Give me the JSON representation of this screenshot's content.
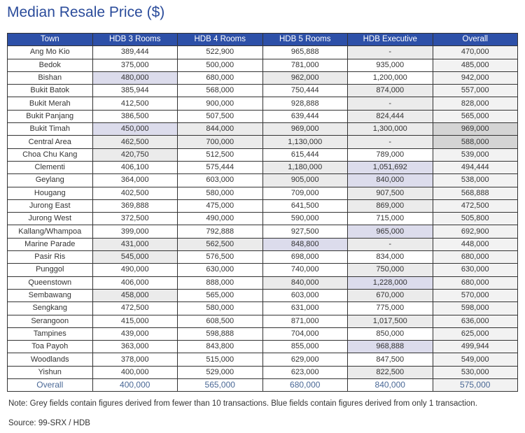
{
  "title": "Median Resale Price ($)",
  "colors": {
    "header": "#2d50a8",
    "grey_field": "#ebebeb",
    "blue_field": "#dcdcec",
    "title": "#2b4c9b"
  },
  "columns": [
    "Town",
    "HDB 3 Rooms",
    "HDB 4 Rooms",
    "HDB 5 Rooms",
    "HDB Executive",
    "Overall"
  ],
  "rows": [
    {
      "town": "Ang Mo Kio",
      "values": [
        "389,444",
        "522,900",
        "965,888",
        "-",
        "470,000"
      ],
      "shade": [
        "",
        "",
        "",
        "g",
        "ov"
      ]
    },
    {
      "town": "Bedok",
      "values": [
        "375,000",
        "500,000",
        "781,000",
        "935,000",
        "485,000"
      ],
      "shade": [
        "",
        "",
        "",
        "",
        "ov"
      ]
    },
    {
      "town": "Bishan",
      "values": [
        "480,000",
        "680,000",
        "962,000",
        "1,200,000",
        "942,000"
      ],
      "shade": [
        "b",
        "",
        "g",
        "",
        "ov"
      ]
    },
    {
      "town": "Bukit Batok",
      "values": [
        "385,944",
        "568,000",
        "750,444",
        "874,000",
        "557,000"
      ],
      "shade": [
        "",
        "",
        "",
        "g",
        "ov"
      ]
    },
    {
      "town": "Bukit Merah",
      "values": [
        "412,500",
        "900,000",
        "928,888",
        "-",
        "828,000"
      ],
      "shade": [
        "",
        "",
        "",
        "g",
        "ov"
      ]
    },
    {
      "town": "Bukit Panjang",
      "values": [
        "386,500",
        "507,500",
        "639,444",
        "824,444",
        "565,000"
      ],
      "shade": [
        "",
        "",
        "",
        "g",
        "ov"
      ]
    },
    {
      "town": "Bukit Timah",
      "values": [
        "450,000",
        "844,000",
        "969,000",
        "1,300,000",
        "969,000"
      ],
      "shade": [
        "b",
        "g",
        "g",
        "g",
        "d"
      ]
    },
    {
      "town": "Central Area",
      "values": [
        "462,500",
        "700,000",
        "1,130,000",
        "-",
        "588,000"
      ],
      "shade": [
        "g",
        "g",
        "g",
        "g",
        "d"
      ]
    },
    {
      "town": "Choa Chu Kang",
      "values": [
        "420,750",
        "512,500",
        "615,444",
        "789,000",
        "539,000"
      ],
      "shade": [
        "g",
        "",
        "",
        "",
        "ov"
      ]
    },
    {
      "town": "Clementi",
      "values": [
        "406,100",
        "575,444",
        "1,180,000",
        "1,051,692",
        "494,444"
      ],
      "shade": [
        "",
        "",
        "g",
        "b",
        "ov"
      ]
    },
    {
      "town": "Geylang",
      "values": [
        "364,000",
        "603,000",
        "905,000",
        "840,000",
        "538,000"
      ],
      "shade": [
        "",
        "",
        "g",
        "b",
        "ov"
      ]
    },
    {
      "town": "Hougang",
      "values": [
        "402,500",
        "580,000",
        "709,000",
        "907,500",
        "568,888"
      ],
      "shade": [
        "",
        "",
        "",
        "g",
        "ov"
      ]
    },
    {
      "town": "Jurong East",
      "values": [
        "369,888",
        "475,000",
        "641,500",
        "869,000",
        "472,500"
      ],
      "shade": [
        "",
        "",
        "",
        "g",
        "ov"
      ]
    },
    {
      "town": "Jurong West",
      "values": [
        "372,500",
        "490,000",
        "590,000",
        "715,000",
        "505,800"
      ],
      "shade": [
        "",
        "",
        "",
        "",
        "ov"
      ]
    },
    {
      "town": "Kallang/Whampoa",
      "values": [
        "399,000",
        "792,888",
        "927,500",
        "965,000",
        "692,900"
      ],
      "shade": [
        "",
        "",
        "",
        "b",
        "ov"
      ]
    },
    {
      "town": "Marine Parade",
      "values": [
        "431,000",
        "562,500",
        "848,800",
        "-",
        "448,000"
      ],
      "shade": [
        "g",
        "g",
        "b",
        "g",
        "ov"
      ]
    },
    {
      "town": "Pasir Ris",
      "values": [
        "545,000",
        "576,500",
        "698,000",
        "834,000",
        "680,000"
      ],
      "shade": [
        "g",
        "",
        "",
        "",
        "ov"
      ]
    },
    {
      "town": "Punggol",
      "values": [
        "490,000",
        "630,000",
        "740,000",
        "750,000",
        "630,000"
      ],
      "shade": [
        "",
        "",
        "",
        "g",
        "ov"
      ]
    },
    {
      "town": "Queenstown",
      "values": [
        "406,000",
        "888,000",
        "840,000",
        "1,228,000",
        "680,000"
      ],
      "shade": [
        "",
        "",
        "g",
        "b",
        "ov"
      ]
    },
    {
      "town": "Sembawang",
      "values": [
        "458,000",
        "565,000",
        "603,000",
        "670,000",
        "570,000"
      ],
      "shade": [
        "g",
        "",
        "",
        "g",
        "ov"
      ]
    },
    {
      "town": "Sengkang",
      "values": [
        "472,500",
        "580,000",
        "631,000",
        "775,000",
        "598,000"
      ],
      "shade": [
        "",
        "",
        "",
        "",
        "ov"
      ]
    },
    {
      "town": "Serangoon",
      "values": [
        "415,000",
        "608,500",
        "871,000",
        "1,017,500",
        "636,000"
      ],
      "shade": [
        "",
        "",
        "",
        "g",
        "ov"
      ]
    },
    {
      "town": "Tampines",
      "values": [
        "439,000",
        "598,888",
        "704,000",
        "850,000",
        "625,000"
      ],
      "shade": [
        "",
        "",
        "",
        "",
        "ov"
      ]
    },
    {
      "town": "Toa Payoh",
      "values": [
        "363,000",
        "843,800",
        "855,000",
        "968,888",
        "499,944"
      ],
      "shade": [
        "",
        "",
        "",
        "b",
        "ov"
      ]
    },
    {
      "town": "Woodlands",
      "values": [
        "378,000",
        "515,000",
        "629,000",
        "847,500",
        "549,000"
      ],
      "shade": [
        "",
        "",
        "",
        "",
        "ov"
      ]
    },
    {
      "town": "Yishun",
      "values": [
        "400,000",
        "529,000",
        "623,000",
        "822,500",
        "530,000"
      ],
      "shade": [
        "",
        "",
        "",
        "g",
        "ov"
      ]
    }
  ],
  "total": {
    "town": "Overall",
    "values": [
      "400,000",
      "565,000",
      "680,000",
      "840,000",
      "575,000"
    ]
  },
  "note": "Note: Grey fields contain figures derived from fewer than 10 transactions. Blue fields contain figures derived from only 1 transaction.",
  "source": "Source: 99-SRX / HDB"
}
